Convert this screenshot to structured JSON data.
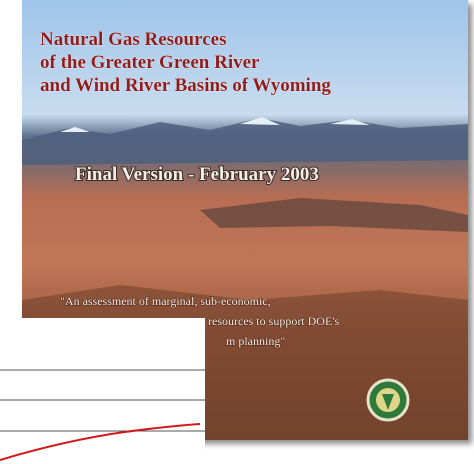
{
  "cover": {
    "title_lines": [
      "Natural Gas Resources",
      "of the Greater Green River",
      "and Wind River Basins of Wyoming"
    ],
    "edition": "Final Version - February 2003",
    "quote_lines": [
      "\"An assessment of marginal, sub-economic,",
      "resources to support DOE's",
      "m planning\""
    ]
  }
}
